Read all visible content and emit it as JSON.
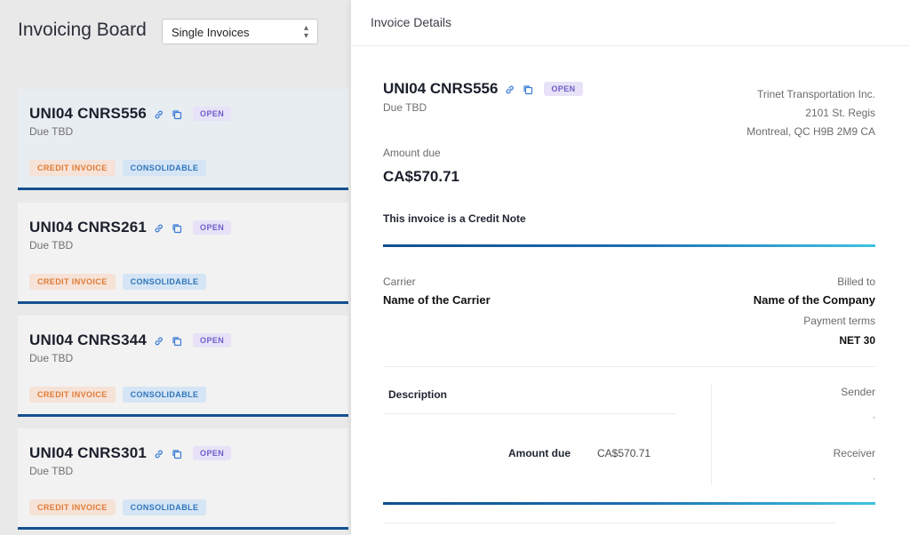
{
  "board": {
    "title": "Invoicing Board",
    "filter_value": "Single Invoices",
    "cards": [
      {
        "title": "UNI04 CNRS556",
        "due": "Due TBD",
        "status": "OPEN",
        "tags": [
          "CREDIT INVOICE",
          "CONSOLIDABLE"
        ]
      },
      {
        "title": "UNI04 CNRS261",
        "due": "Due TBD",
        "status": "OPEN",
        "tags": [
          "CREDIT INVOICE",
          "CONSOLIDABLE"
        ]
      },
      {
        "title": "UNI04 CNRS344",
        "due": "Due TBD",
        "status": "OPEN",
        "tags": [
          "CREDIT INVOICE",
          "CONSOLIDABLE"
        ]
      },
      {
        "title": "UNI04 CNRS301",
        "due": "Due TBD",
        "status": "OPEN",
        "tags": [
          "CREDIT INVOICE",
          "CONSOLIDABLE"
        ]
      }
    ]
  },
  "panel": {
    "header": "Invoice Details",
    "invoice_title": "UNI04 CNRS556",
    "status": "OPEN",
    "due": "Due TBD",
    "address": [
      "Trinet Transportation Inc.",
      "2101 St. Regis",
      "Montreal, QC H9B 2M9 CA"
    ],
    "amount_due_label": "Amount due",
    "amount_due": "CA$570.71",
    "note": "This invoice is a Credit Note",
    "carrier_label": "Carrier",
    "carrier_name": "Name of the Carrier",
    "billed_to_label": "Billed to",
    "billed_to_name": "Name of the Company",
    "payment_terms_label": "Payment terms",
    "payment_terms": "NET 30",
    "description_label": "Description",
    "row_amount_label": "Amount due",
    "row_amount_value": "CA$570.71",
    "sender_label": "Sender",
    "sender_value": ",",
    "receiver_label": "Receiver",
    "receiver_value": ","
  },
  "colors": {
    "accent_bar": "#14508f",
    "open_badge_bg": "#e7e2f7",
    "open_badge_text": "#6f5ec9",
    "credit_tag_bg": "#f6e2d6",
    "credit_tag_text": "#e07b36",
    "consolidable_tag_bg": "#d5e5f5",
    "consolidable_tag_text": "#2f75bb"
  },
  "icons": [
    "link-icon",
    "copy-icon",
    "chevron-updown-icon"
  ]
}
